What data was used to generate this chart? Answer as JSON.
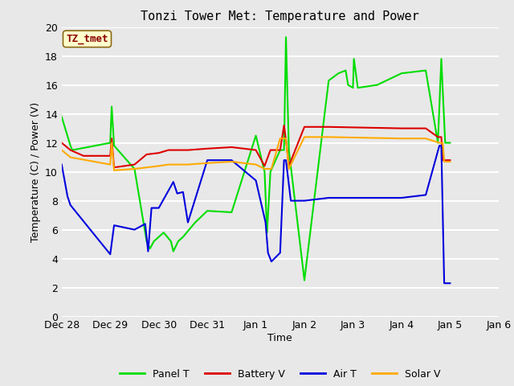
{
  "title": "Tonzi Tower Met: Temperature and Power",
  "xlabel": "Time",
  "ylabel": "Temperature (C) / Power (V)",
  "ylim": [
    0,
    20
  ],
  "yticks": [
    0,
    2,
    4,
    6,
    8,
    10,
    12,
    14,
    16,
    18,
    20
  ],
  "tz_label": "TZ_tmet",
  "xtick_labels": [
    "Dec 28",
    "Dec 29",
    "Dec 30",
    "Dec 31",
    "Jan 1",
    "Jan 2",
    "Jan 3",
    "Jan 4",
    "Jan 5",
    "Jan 6"
  ],
  "background_color": "#e8e8e8",
  "plot_bg_color": "#e8e8e8",
  "fig_bg_color": "#e8e8e8",
  "grid_color": "#ffffff",
  "colors": {
    "panel": "#00dd00",
    "battery": "#dd0000",
    "air": "#0000dd",
    "solar": "#ffaa00"
  },
  "panel_t": {
    "x": [
      0,
      0.18,
      0.22,
      1.0,
      1.03,
      1.08,
      1.5,
      1.75,
      1.82,
      1.9,
      2.0,
      2.1,
      2.25,
      2.3,
      2.4,
      2.5,
      2.75,
      3.0,
      3.5,
      4.0,
      4.18,
      4.23,
      4.3,
      4.5,
      4.58,
      4.62,
      4.68,
      5.0,
      5.5,
      5.7,
      5.85,
      5.9,
      6.0,
      6.02,
      6.1,
      6.5,
      7.0,
      7.5,
      7.75,
      7.82,
      7.9,
      8.0
    ],
    "y": [
      13.8,
      11.8,
      11.5,
      12.0,
      14.5,
      11.8,
      10.2,
      5.2,
      4.7,
      5.2,
      5.5,
      5.8,
      5.2,
      4.5,
      5.2,
      5.5,
      6.5,
      7.3,
      7.2,
      12.5,
      10.0,
      5.8,
      10.0,
      11.5,
      11.5,
      19.3,
      11.5,
      2.5,
      16.3,
      16.8,
      17.0,
      16.0,
      15.8,
      17.8,
      15.8,
      16.0,
      16.8,
      17.0,
      12.0,
      17.8,
      12.0,
      12.0
    ]
  },
  "battery_v": {
    "x": [
      0,
      0.18,
      0.45,
      1.0,
      1.03,
      1.08,
      1.5,
      1.75,
      2.0,
      2.2,
      2.6,
      3.0,
      3.5,
      4.0,
      4.18,
      4.3,
      4.5,
      4.58,
      4.62,
      4.68,
      5.0,
      5.5,
      7.0,
      7.5,
      7.75,
      7.82,
      7.85,
      8.0
    ],
    "y": [
      12.0,
      11.5,
      11.1,
      11.1,
      12.3,
      10.3,
      10.5,
      11.2,
      11.3,
      11.5,
      11.5,
      11.6,
      11.7,
      11.5,
      10.4,
      11.5,
      11.5,
      13.2,
      12.2,
      10.4,
      13.1,
      13.1,
      13.0,
      13.0,
      12.4,
      12.4,
      10.8,
      10.8
    ]
  },
  "air_t": {
    "x": [
      0,
      0.12,
      0.18,
      1.0,
      1.08,
      1.5,
      1.72,
      1.78,
      1.85,
      2.0,
      2.3,
      2.38,
      2.5,
      2.6,
      3.0,
      3.5,
      4.0,
      4.2,
      4.25,
      4.32,
      4.5,
      4.58,
      4.62,
      4.72,
      4.85,
      5.0,
      5.5,
      7.0,
      7.5,
      7.78,
      7.82,
      7.88,
      8.0
    ],
    "y": [
      10.5,
      8.3,
      7.7,
      4.3,
      6.3,
      6.0,
      6.4,
      4.5,
      7.5,
      7.5,
      9.3,
      8.5,
      8.6,
      6.5,
      10.8,
      10.8,
      9.4,
      6.5,
      4.4,
      3.8,
      4.4,
      10.8,
      10.8,
      8.0,
      8.0,
      8.0,
      8.2,
      8.2,
      8.4,
      11.8,
      11.8,
      2.3,
      2.3
    ]
  },
  "solar_v": {
    "x": [
      0,
      0.18,
      1.0,
      1.03,
      1.08,
      1.5,
      1.75,
      2.0,
      2.2,
      2.6,
      3.0,
      3.5,
      4.0,
      4.18,
      4.25,
      4.32,
      4.5,
      4.58,
      4.62,
      4.68,
      5.0,
      5.5,
      7.0,
      7.5,
      7.78,
      7.85,
      7.88,
      8.0
    ],
    "y": [
      11.5,
      11.0,
      10.5,
      12.0,
      10.1,
      10.2,
      10.3,
      10.4,
      10.5,
      10.5,
      10.6,
      10.7,
      10.5,
      10.2,
      10.2,
      10.2,
      12.3,
      12.3,
      12.3,
      10.2,
      12.4,
      12.4,
      12.3,
      12.3,
      12.0,
      12.0,
      10.7,
      10.7
    ]
  }
}
